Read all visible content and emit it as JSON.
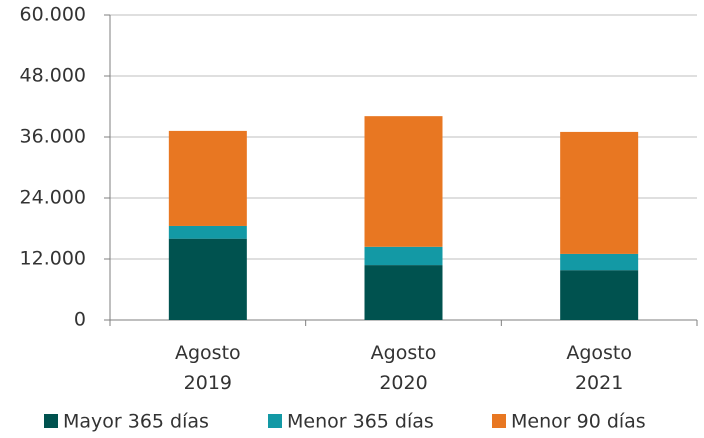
{
  "chart_data": {
    "type": "bar",
    "stacked": true,
    "categories": [
      "Agosto 2019",
      "Agosto 2020",
      "Agosto 2021"
    ],
    "series": [
      {
        "name": "Mayor 365 días",
        "color": "#00524f",
        "values": [
          16000,
          10800,
          9800
        ]
      },
      {
        "name": "Menor 365 días",
        "color": "#1399a5",
        "values": [
          2500,
          3600,
          3200
        ]
      },
      {
        "name": "Menor 90 días",
        "color": "#e87722",
        "values": [
          18700,
          25700,
          24000
        ]
      }
    ],
    "ylim": [
      0,
      60000
    ],
    "yticks": [
      0,
      {
        "value": 12000,
        "label": "12.000"
      },
      {
        "value": 24000,
        "label": "24.000"
      },
      {
        "value": 36000,
        "label": "36.000"
      },
      {
        "value": 48000,
        "label": "48.000"
      },
      {
        "value": 60000,
        "label": "60.000"
      }
    ],
    "grid": true,
    "legend": "bottom"
  }
}
